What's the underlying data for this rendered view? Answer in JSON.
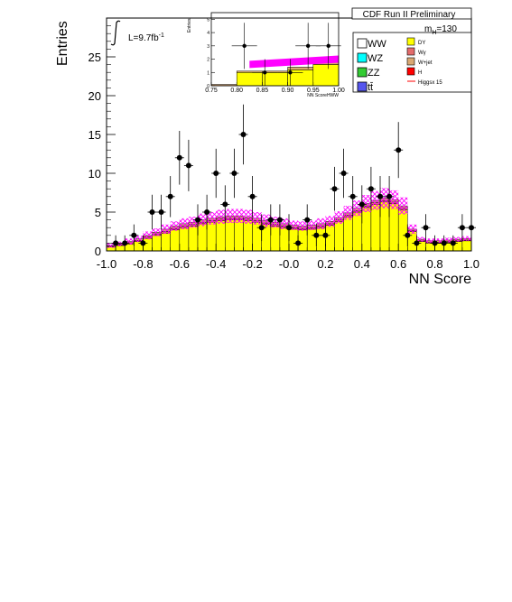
{
  "chart_data": {
    "type": "bar",
    "title": "CDF Run II Preliminary",
    "xlabel": "NN Score",
    "ylabel": "Entries",
    "xlim": [
      -1.0,
      1.0
    ],
    "ylim": [
      0,
      30
    ],
    "x_ticks": [
      "-1.0",
      "-0.8",
      "-0.6",
      "-0.4",
      "-0.2",
      "-0.0",
      "0.2",
      "0.4",
      "0.6",
      "0.8",
      "1.0"
    ],
    "y_ticks": [
      "0",
      "5",
      "10",
      "15",
      "20",
      "25"
    ],
    "luminosity_label": "L=9.7fb",
    "luminosity_sup": "-1",
    "mass_label": "m",
    "mass_sub": "H",
    "mass_value": "=130",
    "bin_edges": [
      -1.0,
      -0.95,
      -0.9,
      -0.85,
      -0.8,
      -0.75,
      -0.7,
      -0.65,
      -0.6,
      -0.55,
      -0.5,
      -0.45,
      -0.4,
      -0.35,
      -0.3,
      -0.25,
      -0.2,
      -0.15,
      -0.1,
      -0.05,
      0.0,
      0.05,
      0.1,
      0.15,
      0.2,
      0.25,
      0.3,
      0.35,
      0.4,
      0.45,
      0.5,
      0.55,
      0.6,
      0.65,
      0.7,
      0.75,
      0.8,
      0.85,
      0.9,
      0.95,
      1.0
    ],
    "series": [
      {
        "name": "DY",
        "color": "#ffff00",
        "values": [
          0.5,
          0.7,
          0.9,
          1.2,
          1.6,
          2.0,
          2.3,
          2.7,
          3.0,
          3.2,
          3.5,
          3.7,
          3.9,
          4.0,
          4.0,
          3.9,
          3.7,
          3.4,
          3.2,
          3.0,
          2.8,
          2.7,
          2.8,
          3.0,
          3.3,
          3.8,
          4.4,
          5.0,
          5.6,
          6.0,
          6.3,
          6.1,
          5.3,
          2.5,
          1.2,
          1.0,
          1.0,
          1.1,
          1.2,
          1.3
        ]
      },
      {
        "name": "Wγ",
        "color": "#e36c6c",
        "values": [
          0.1,
          0.1,
          0.15,
          0.15,
          0.2,
          0.2,
          0.2,
          0.2,
          0.2,
          0.2,
          0.2,
          0.2,
          0.2,
          0.2,
          0.2,
          0.2,
          0.2,
          0.2,
          0.2,
          0.2,
          0.2,
          0.2,
          0.2,
          0.2,
          0.2,
          0.2,
          0.2,
          0.2,
          0.2,
          0.2,
          0.2,
          0.2,
          0.2,
          0.1,
          0.1,
          0.1,
          0.1,
          0.1,
          0.1,
          0.1
        ]
      },
      {
        "name": "W+jet",
        "color": "#d9a873",
        "values": [
          0.1,
          0.1,
          0.15,
          0.2,
          0.2,
          0.2,
          0.3,
          0.3,
          0.3,
          0.3,
          0.3,
          0.3,
          0.3,
          0.3,
          0.3,
          0.3,
          0.3,
          0.3,
          0.3,
          0.3,
          0.3,
          0.3,
          0.3,
          0.3,
          0.3,
          0.3,
          0.3,
          0.3,
          0.3,
          0.3,
          0.3,
          0.3,
          0.3,
          0.2,
          0.2,
          0.2,
          0.2,
          0.2,
          0.2,
          0.2
        ]
      },
      {
        "name": "H",
        "color": "#ff0000",
        "values": [
          0,
          0,
          0,
          0,
          0,
          0,
          0,
          0,
          0,
          0,
          0,
          0,
          0,
          0,
          0,
          0,
          0,
          0,
          0,
          0,
          0,
          0,
          0,
          0,
          0,
          0,
          0,
          0,
          0,
          0,
          0,
          0,
          0,
          0,
          0,
          0,
          0,
          0,
          0,
          0
        ]
      }
    ],
    "uncertainty_band": {
      "values": [
        0.3,
        0.3,
        0.4,
        0.4,
        0.5,
        0.5,
        0.6,
        0.6,
        0.7,
        0.7,
        0.8,
        0.8,
        0.9,
        0.9,
        0.9,
        0.9,
        0.8,
        0.8,
        0.7,
        0.7,
        0.6,
        0.6,
        0.6,
        0.7,
        0.7,
        0.8,
        0.9,
        1.0,
        1.1,
        1.2,
        1.3,
        1.2,
        1.1,
        0.6,
        0.3,
        0.3,
        0.3,
        0.3,
        0.3,
        0.3
      ]
    },
    "data_points": {
      "x": [
        -0.95,
        -0.9,
        -0.85,
        -0.8,
        -0.75,
        -0.7,
        -0.65,
        -0.6,
        -0.55,
        -0.5,
        -0.45,
        -0.4,
        -0.35,
        -0.3,
        -0.25,
        -0.2,
        -0.15,
        -0.1,
        -0.05,
        0.0,
        0.05,
        0.1,
        0.15,
        0.2,
        0.25,
        0.3,
        0.35,
        0.4,
        0.45,
        0.5,
        0.55,
        0.6,
        0.65,
        0.7,
        0.75,
        0.8,
        0.85,
        0.9,
        0.95,
        1.0
      ],
      "y": [
        1,
        1,
        2,
        1,
        5,
        5,
        7,
        12,
        11,
        4,
        5,
        10,
        6,
        10,
        15,
        7,
        3,
        4,
        4,
        3,
        1,
        4,
        2,
        2,
        8,
        10,
        7,
        6,
        8,
        7,
        7,
        13,
        2,
        1,
        3,
        1,
        1,
        1,
        3,
        3
      ]
    },
    "legend": {
      "position": "top-right",
      "left_entries": [
        "WW",
        "WZ",
        "ZZ",
        "tt̄"
      ],
      "left_colors": [
        "#ffffff",
        "#00ffff",
        "#33cc33",
        "#5555ee"
      ],
      "right_entries": [
        "DY",
        "Wγ",
        "W+jet",
        "H",
        "Higgsx 15"
      ],
      "right_colors": [
        "#ffff00",
        "#e36c6c",
        "#d9a873",
        "#ff0000",
        "#ff0000"
      ]
    },
    "inset": {
      "ylabel": "Entries",
      "xlabel": "NN ScoreHWW",
      "xlim": [
        0.75,
        1.0
      ],
      "ylim": [
        0,
        5.5
      ],
      "x_ticks": [
        "0.75",
        "0.80",
        "0.85",
        "0.90",
        "0.95",
        "1.00"
      ],
      "y_ticks": [
        "0",
        "1",
        "2",
        "3",
        "4",
        "5"
      ],
      "bin_edges": [
        0.75,
        0.8,
        0.85,
        0.9,
        0.95,
        1.0
      ],
      "stack_values": [
        0.1,
        1.1,
        1.1,
        1.4,
        1.8
      ],
      "yellow_values": [
        0,
        1.0,
        1.0,
        1.2,
        1.6
      ],
      "signal_x": [
        0.825,
        1.0
      ],
      "signal_y": [
        1.6,
        2.0
      ],
      "data_x": [
        0.815,
        0.855,
        0.905,
        0.94,
        0.98
      ],
      "data_y": [
        3,
        1,
        1,
        3,
        3
      ]
    }
  }
}
